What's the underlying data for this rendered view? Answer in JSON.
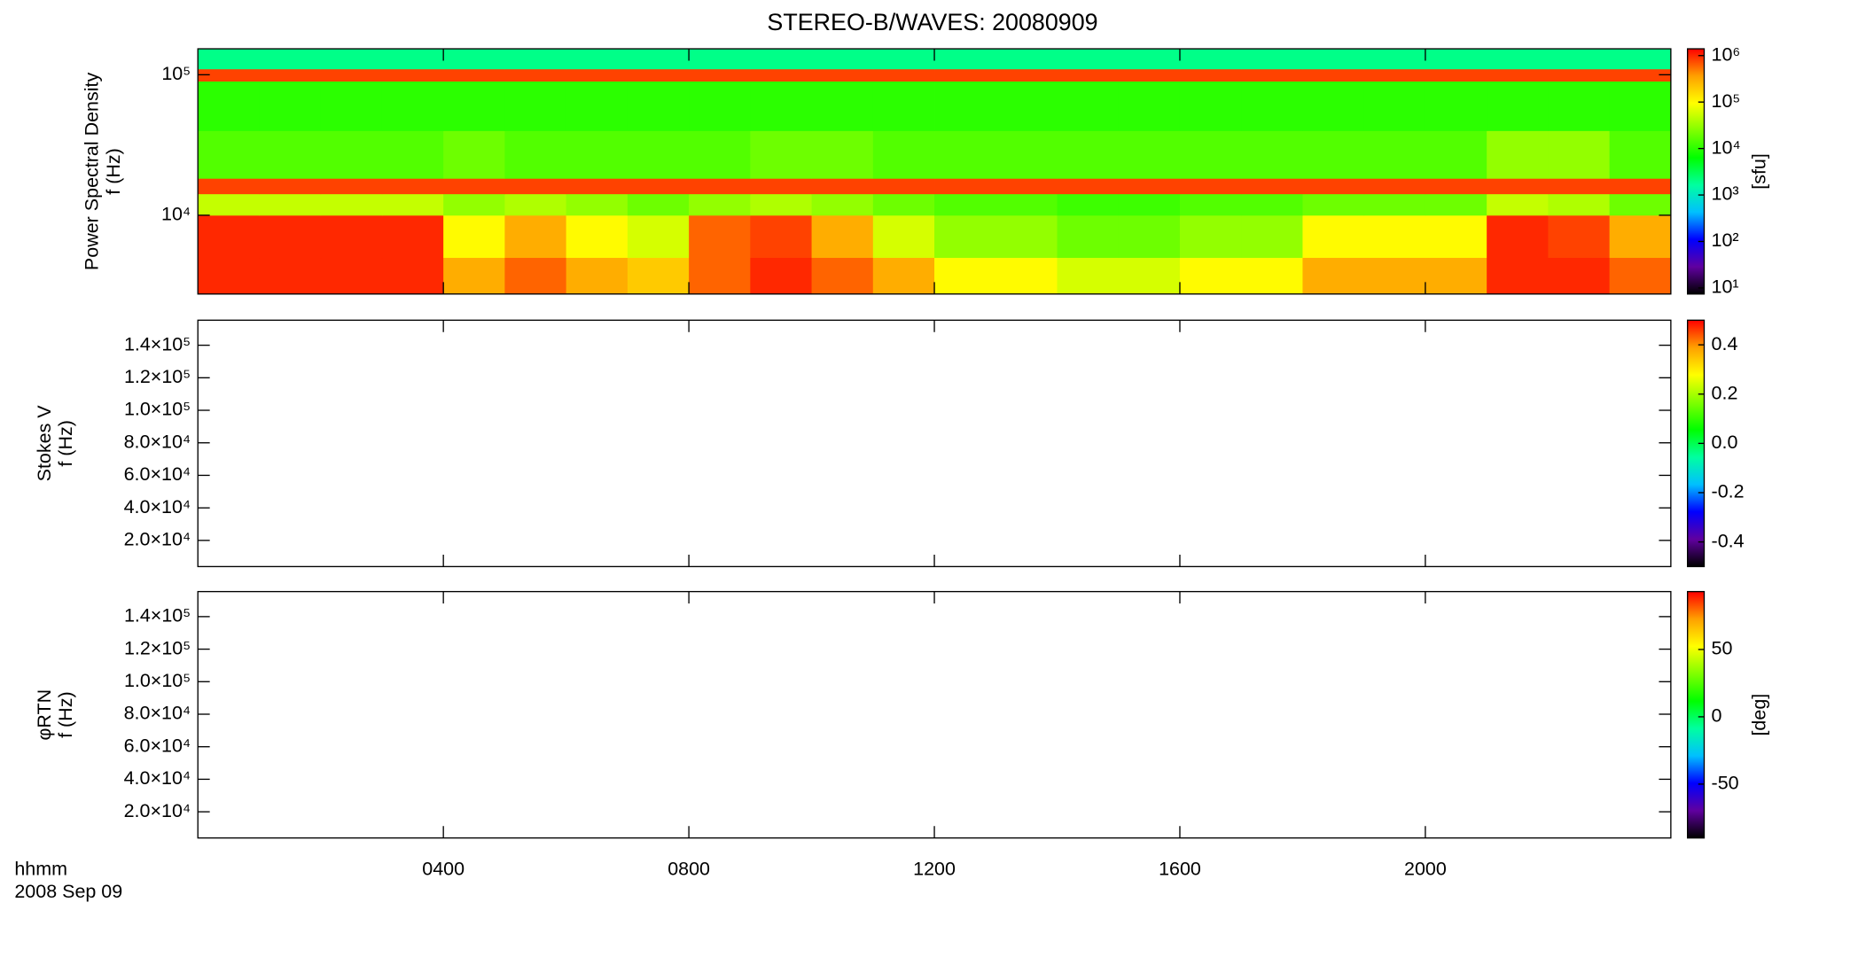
{
  "chart_data": [
    {
      "type": "heatmap",
      "title": "STEREO-B/WAVES: 20080909",
      "ylabel": [
        "Power Spectral Density",
        "f (Hz)"
      ],
      "yscale": "log",
      "ylim": [
        2750,
        153000
      ],
      "yticks": [
        {
          "value": 10000,
          "label": "10⁴"
        },
        {
          "value": 100000,
          "label": "10⁵"
        }
      ],
      "zscale": "log",
      "zlim": [
        7.4,
        1400000
      ],
      "zlabel": "[sfu]",
      "zticks": [
        {
          "value": 10,
          "label": "10¹"
        },
        {
          "value": 100,
          "label": "10²"
        },
        {
          "value": 1000,
          "label": "10³"
        },
        {
          "value": 10000,
          "label": "10⁴"
        },
        {
          "value": 100000,
          "label": "10⁵"
        },
        {
          "value": 1000000,
          "label": "10⁶"
        }
      ],
      "colormap": [
        "#000000",
        "#6000a0",
        "#0000ff",
        "#00c0ff",
        "#00ffa0",
        "#00ff00",
        "#80ff00",
        "#ffff00",
        "#ffa000",
        "#ff0000"
      ],
      "x_bins": [
        0,
        1,
        2,
        3,
        4,
        5,
        6,
        7,
        8,
        9,
        10,
        11,
        12,
        13,
        14,
        15,
        16,
        17,
        18,
        19,
        20,
        21,
        22,
        23,
        24
      ],
      "y_bins": [
        2750,
        5000,
        10000,
        14200,
        18300,
        40000,
        90000,
        110000,
        153000
      ],
      "z": [
        [
          1000000.0,
          1000000.0,
          1000000.0,
          1000000.0,
          300000.0,
          600000.0,
          300000.0,
          200000.0,
          600000.0,
          1000000.0,
          600000.0,
          300000.0,
          100000.0,
          100000.0,
          60000.0,
          60000.0,
          100000.0,
          100000.0,
          300000.0,
          300000.0,
          300000.0,
          1000000.0,
          1000000.0,
          600000.0
        ],
        [
          1000000.0,
          1000000.0,
          1000000.0,
          1000000.0,
          100000.0,
          300000.0,
          100000.0,
          60000.0,
          600000.0,
          800000.0,
          300000.0,
          60000.0,
          30000.0,
          30000.0,
          20000.0,
          20000.0,
          30000.0,
          30000.0,
          100000.0,
          100000.0,
          100000.0,
          1000000.0,
          800000.0,
          300000.0
        ],
        [
          50000.0,
          50000.0,
          50000.0,
          50000.0,
          30000.0,
          40000.0,
          30000.0,
          20000.0,
          30000.0,
          40000.0,
          30000.0,
          20000.0,
          15000.0,
          15000.0,
          12000.0,
          12000.0,
          15000.0,
          15000.0,
          20000.0,
          20000.0,
          20000.0,
          50000.0,
          40000.0,
          20000.0
        ],
        [
          800000.0,
          800000.0,
          800000.0,
          800000.0,
          800000.0,
          800000.0,
          800000.0,
          800000.0,
          800000.0,
          800000.0,
          800000.0,
          800000.0,
          800000.0,
          800000.0,
          800000.0,
          800000.0,
          800000.0,
          800000.0,
          800000.0,
          800000.0,
          800000.0,
          800000.0,
          800000.0,
          800000.0
        ],
        [
          15000.0,
          15000.0,
          15000.0,
          15000.0,
          20000.0,
          15000.0,
          15000.0,
          15000.0,
          15000.0,
          20000.0,
          20000.0,
          15000.0,
          15000.0,
          15000.0,
          15000.0,
          15000.0,
          15000.0,
          15000.0,
          15000.0,
          15000.0,
          15000.0,
          30000.0,
          30000.0,
          15000.0
        ],
        [
          10000.0,
          10000.0,
          10000.0,
          10000.0,
          10000.0,
          10000.0,
          10000.0,
          10000.0,
          10000.0,
          10000.0,
          10000.0,
          10000.0,
          10000.0,
          10000.0,
          10000.0,
          10000.0,
          10000.0,
          10000.0,
          10000.0,
          10000.0,
          10000.0,
          10000.0,
          10000.0,
          10000.0
        ],
        [
          800000.0,
          800000.0,
          800000.0,
          800000.0,
          800000.0,
          800000.0,
          800000.0,
          800000.0,
          800000.0,
          800000.0,
          800000.0,
          800000.0,
          800000.0,
          800000.0,
          800000.0,
          800000.0,
          800000.0,
          800000.0,
          800000.0,
          800000.0,
          800000.0,
          800000.0,
          800000.0,
          800000.0
        ],
        [
          2000.0,
          2000.0,
          2000.0,
          2000.0,
          2000.0,
          2000.0,
          2000.0,
          2000.0,
          2000.0,
          2000.0,
          2000.0,
          2000.0,
          2000.0,
          2000.0,
          2000.0,
          2000.0,
          2000.0,
          2000.0,
          2000.0,
          2000.0,
          2000.0,
          2000.0,
          2000.0,
          2000.0
        ]
      ]
    },
    {
      "type": "heatmap",
      "ylabel": [
        "Stokes V",
        "f (Hz)"
      ],
      "yscale": "linear",
      "ylim": [
        3900,
        155400
      ],
      "yticks": [
        {
          "value": 20000,
          "label": "2.0×10⁴"
        },
        {
          "value": 40000,
          "label": "4.0×10⁴"
        },
        {
          "value": 60000,
          "label": "6.0×10⁴"
        },
        {
          "value": 80000,
          "label": "8.0×10⁴"
        },
        {
          "value": 100000,
          "label": "1.0×10⁵"
        },
        {
          "value": 120000,
          "label": "1.2×10⁵"
        },
        {
          "value": 140000,
          "label": "1.4×10⁵"
        }
      ],
      "zscale": "linear",
      "zlim": [
        -0.5,
        0.5
      ],
      "zticks": [
        {
          "value": -0.4,
          "label": "-0.4"
        },
        {
          "value": -0.2,
          "label": "-0.2"
        },
        {
          "value": 0,
          "label": "0.0"
        },
        {
          "value": 0.2,
          "label": "0.2"
        },
        {
          "value": 0.4,
          "label": "0.4"
        }
      ],
      "colormap": [
        "#000000",
        "#6000a0",
        "#0000ff",
        "#00c0ff",
        "#00ffa0",
        "#00ff00",
        "#80ff00",
        "#ffff00",
        "#ffa000",
        "#ff0000"
      ]
    },
    {
      "type": "heatmap",
      "ylabel": [
        "φRTN",
        "f (Hz)"
      ],
      "yscale": "linear",
      "ylim": [
        3900,
        155400
      ],
      "yticks": [
        {
          "value": 20000,
          "label": "2.0×10⁴"
        },
        {
          "value": 40000,
          "label": "4.0×10⁴"
        },
        {
          "value": 60000,
          "label": "6.0×10⁴"
        },
        {
          "value": 80000,
          "label": "8.0×10⁴"
        },
        {
          "value": 100000,
          "label": "1.0×10⁵"
        },
        {
          "value": 120000,
          "label": "1.2×10⁵"
        },
        {
          "value": 140000,
          "label": "1.4×10⁵"
        }
      ],
      "zscale": "linear",
      "zlim": [
        -90,
        93
      ],
      "zlabel": "[deg]",
      "zticks": [
        -50,
        0,
        50
      ],
      "colormap": [
        "#000000",
        "#6000a0",
        "#0000ff",
        "#00c0ff",
        "#00ffa0",
        "#00ff00",
        "#80ff00",
        "#ffff00",
        "#ffa000",
        "#ff0000"
      ],
      "xlabel": [
        "hhmm",
        "2008 Sep 09"
      ],
      "xlim": [
        0,
        24
      ],
      "xticks": [
        {
          "value": 4,
          "label": "0400"
        },
        {
          "value": 8,
          "label": "0800"
        },
        {
          "value": 12,
          "label": "1200"
        },
        {
          "value": 16,
          "label": "1600"
        },
        {
          "value": 20,
          "label": "2000"
        }
      ]
    }
  ]
}
